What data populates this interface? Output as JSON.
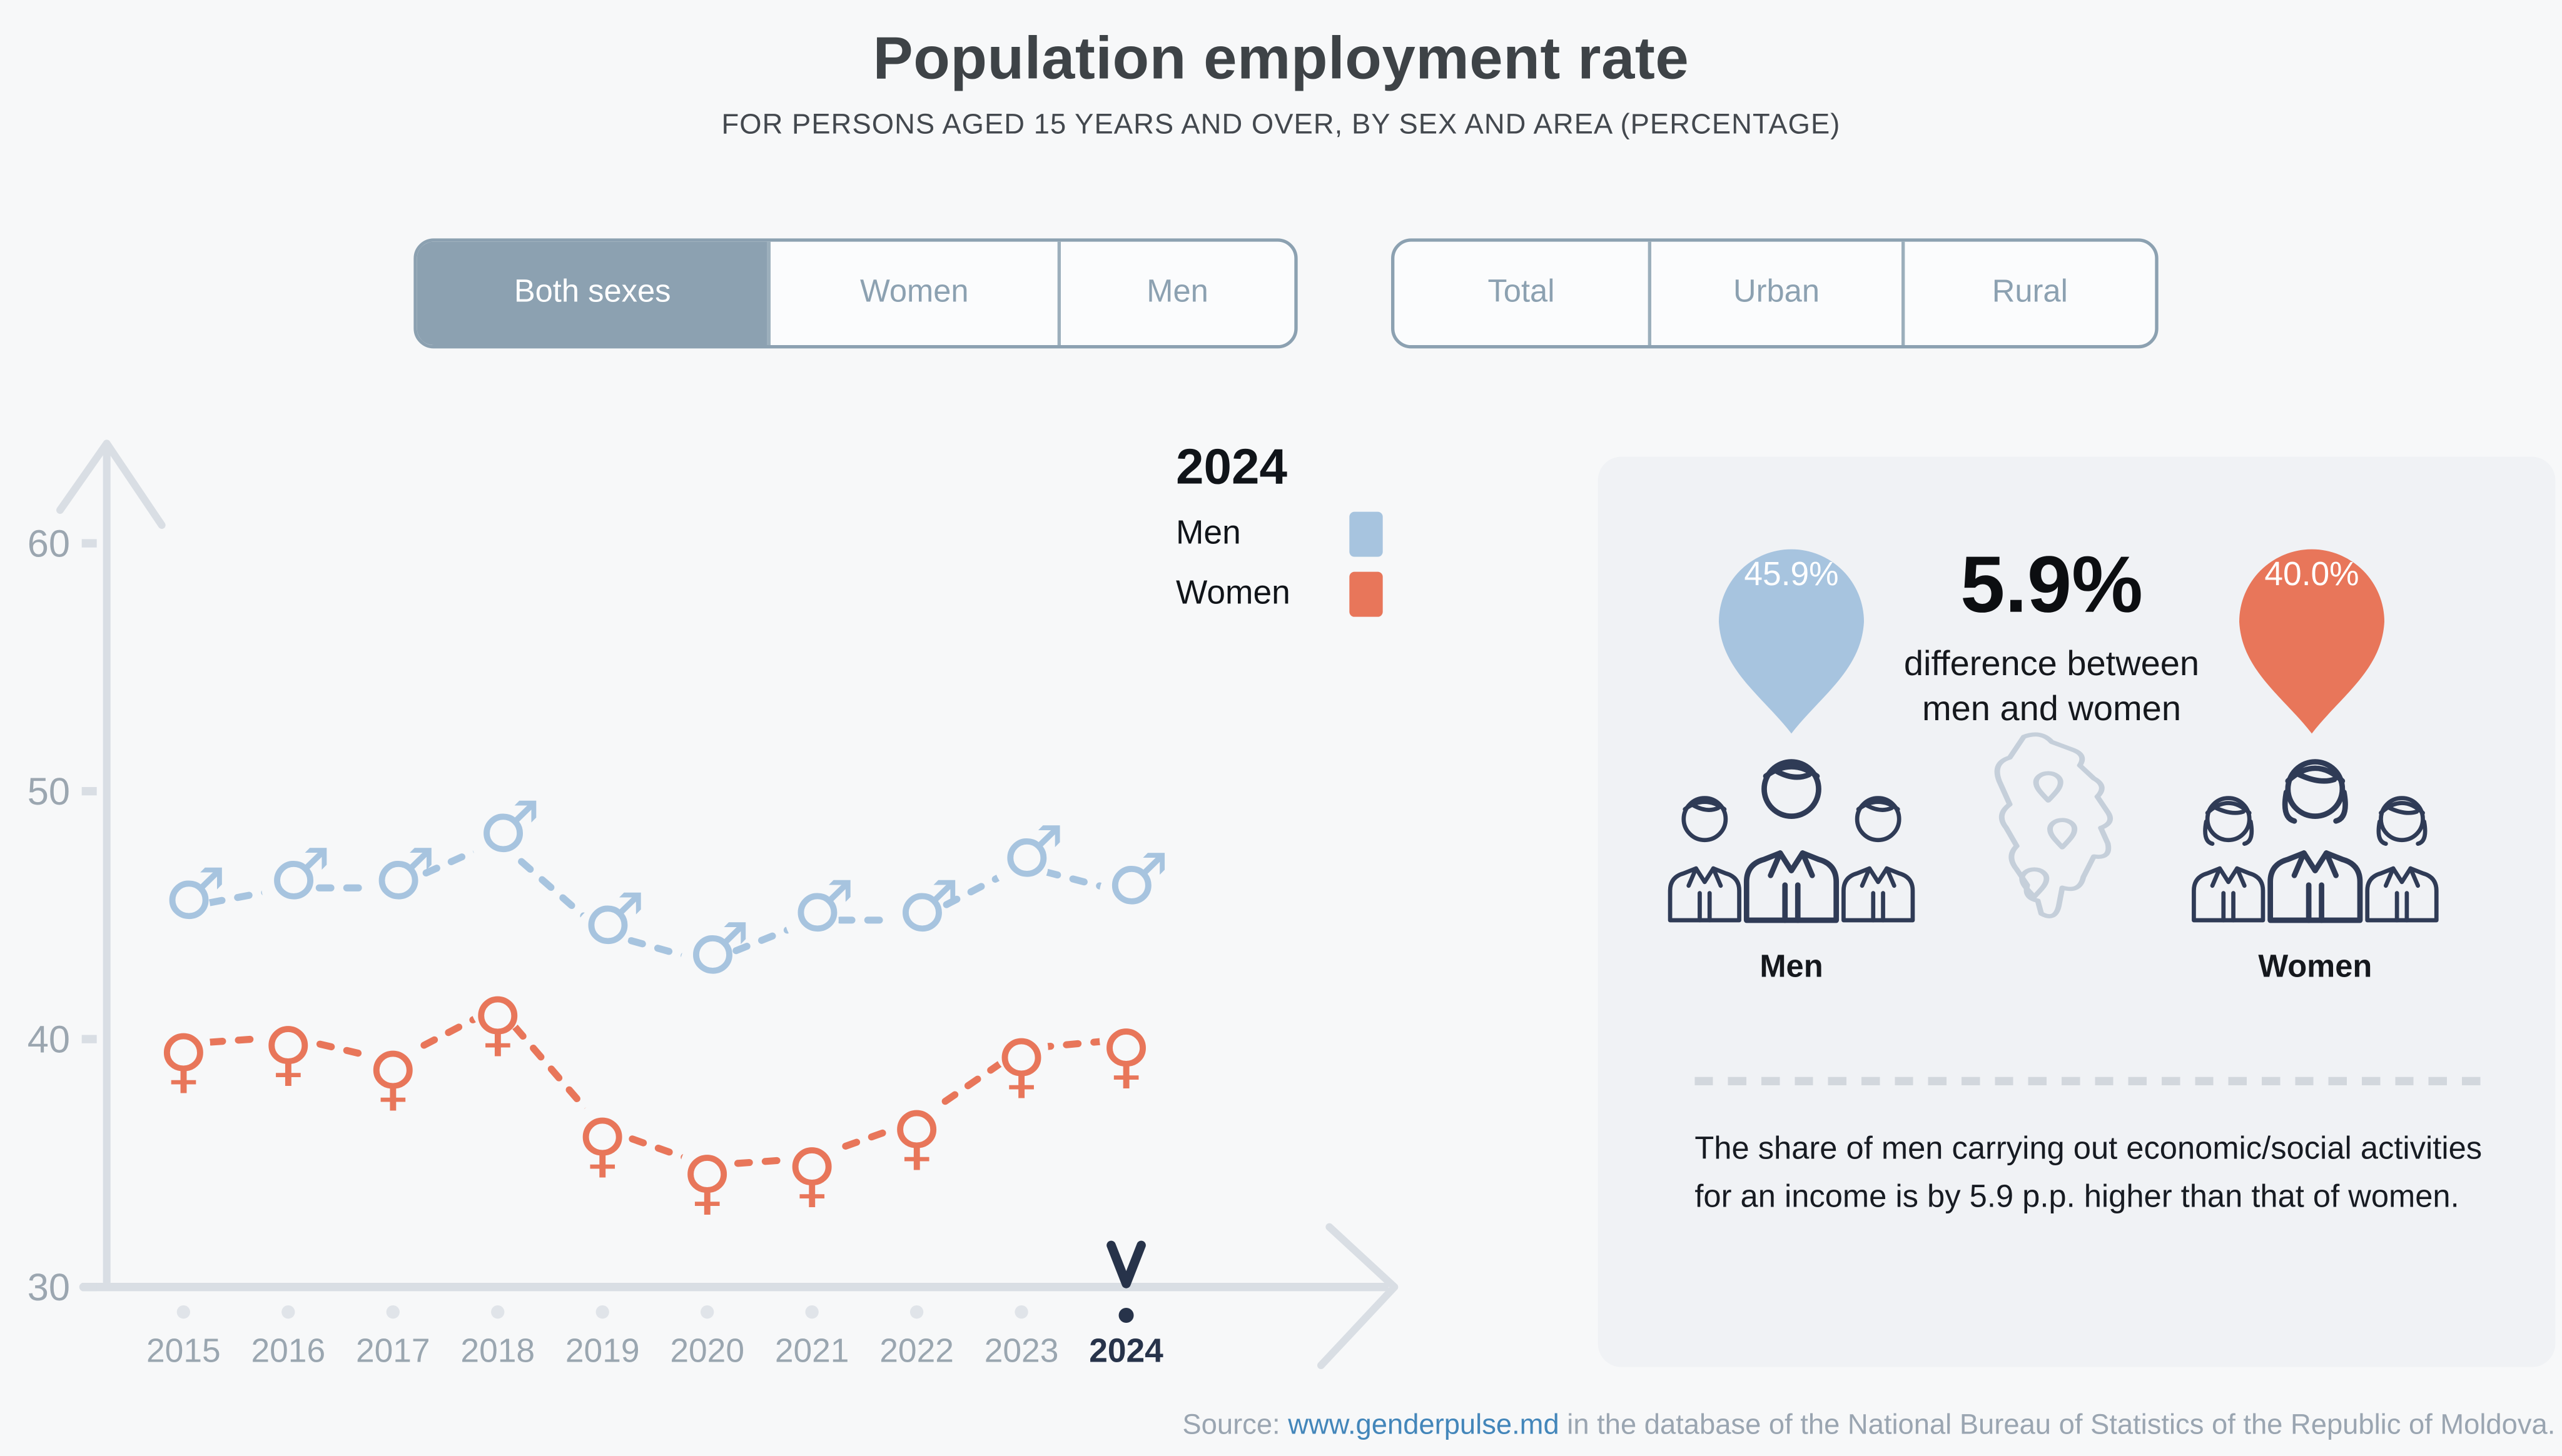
{
  "page": {
    "background": "#f7f8f9"
  },
  "header": {
    "title": "Population employment rate",
    "subtitle": "FOR PERSONS AGED 15 YEARS AND OVER, BY SEX AND AREA (PERCENTAGE)"
  },
  "controls": {
    "sex_toggle": {
      "options": [
        {
          "label": "Both sexes",
          "selected": true
        },
        {
          "label": "Women",
          "selected": false
        },
        {
          "label": "Men",
          "selected": false
        }
      ]
    },
    "area_toggle": {
      "options": [
        {
          "label": "Total",
          "selected": false
        },
        {
          "label": "Urban",
          "selected": false
        },
        {
          "label": "Rural",
          "selected": false
        }
      ]
    }
  },
  "legend": {
    "year": "2024",
    "entries": [
      {
        "label": "Men",
        "color": "#a7c4df"
      },
      {
        "label": "Women",
        "color": "#e8765a"
      }
    ]
  },
  "chart_data": {
    "type": "line",
    "title": "Population employment rate",
    "xlabel": "",
    "ylabel": "",
    "x": [
      "2015",
      "2016",
      "2017",
      "2018",
      "2019",
      "2020",
      "2021",
      "2022",
      "2023",
      "2024"
    ],
    "series": [
      {
        "name": "Men",
        "marker": "male",
        "color": "#a7c4df",
        "values": [
          45.3,
          46.1,
          46.1,
          48.0,
          44.3,
          43.1,
          44.8,
          44.8,
          47.0,
          45.9
        ]
      },
      {
        "name": "Women",
        "marker": "female",
        "color": "#e8765a",
        "values": [
          39.8,
          40.1,
          39.1,
          41.3,
          36.4,
          34.9,
          35.2,
          36.7,
          39.6,
          40.0
        ]
      }
    ],
    "ylim": [
      30,
      62
    ],
    "yticks": [
      30,
      40,
      50,
      60
    ],
    "grid": false,
    "line_style": "dashed",
    "legend_position": "top-right",
    "highlight_x": "2024"
  },
  "panel": {
    "men_pin": {
      "value": "45.9%",
      "color": "#a7c4df"
    },
    "women_pin": {
      "value": "40.0%",
      "color": "#e8765a"
    },
    "difference": {
      "value": "5.9%",
      "caption_line1": "difference between",
      "caption_line2": "men and women"
    },
    "men_label": "Men",
    "women_label": "Women",
    "description": "The share of men carrying out economic/social activities for an income is by 5.9 p.p. higher than that of women."
  },
  "source": {
    "prefix": "Source: ",
    "link_text": "www.genderpulse.md",
    "suffix": " in the database of the National Bureau of Statistics of the Republic of Moldova."
  },
  "colors": {
    "accent": "#8ca1b1",
    "axis": "#d9dee4",
    "tick_label": "#9ba6b0",
    "year_highlight": "#27334a",
    "icon_navy": "#2f3b56",
    "map_outline": "#c5cfda",
    "dot": "#e0e4e9",
    "panel_bg": "#f0f2f5",
    "link": "#4386ba",
    "source_text": "#9aa5b1"
  }
}
